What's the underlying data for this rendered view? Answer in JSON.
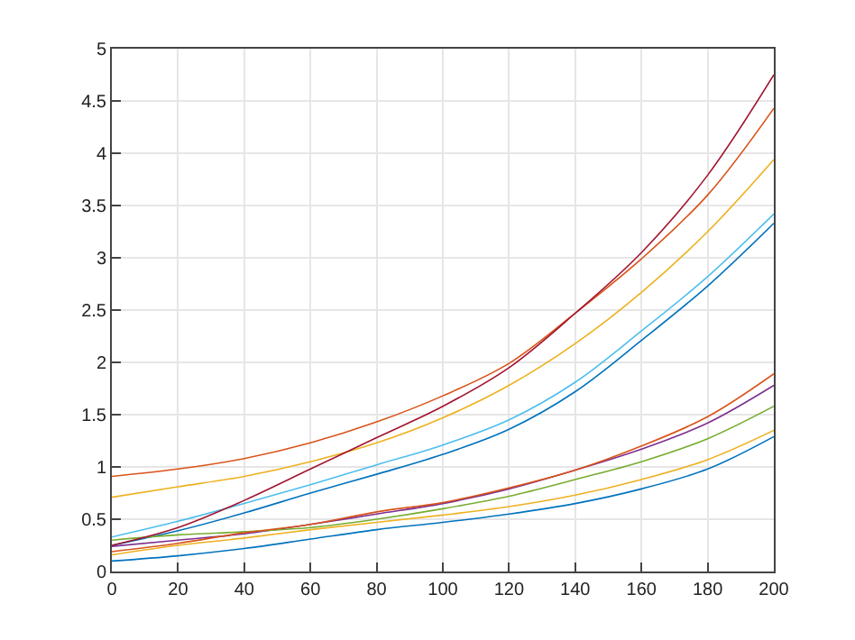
{
  "chart_data": {
    "type": "line",
    "x": [
      0,
      20,
      40,
      60,
      80,
      100,
      120,
      140,
      160,
      180,
      200
    ],
    "series": [
      {
        "color": "#0072bd",
        "values": [
          0.25,
          0.39,
          0.56,
          0.75,
          0.93,
          1.12,
          1.36,
          1.72,
          2.21,
          2.73,
          3.33
        ]
      },
      {
        "color": "#d95319",
        "values": [
          0.91,
          0.98,
          1.08,
          1.23,
          1.43,
          1.68,
          1.99,
          2.47,
          2.99,
          3.6,
          4.43
        ]
      },
      {
        "color": "#edb120",
        "values": [
          0.71,
          0.81,
          0.91,
          1.05,
          1.23,
          1.47,
          1.78,
          2.18,
          2.67,
          3.25,
          3.94
        ]
      },
      {
        "color": "#7e2f8e",
        "values": [
          0.24,
          0.3,
          0.36,
          0.45,
          0.55,
          0.65,
          0.79,
          0.97,
          1.17,
          1.42,
          1.78
        ]
      },
      {
        "color": "#77ac30",
        "values": [
          0.3,
          0.35,
          0.38,
          0.42,
          0.5,
          0.6,
          0.72,
          0.88,
          1.05,
          1.27,
          1.58
        ]
      },
      {
        "color": "#4dbeee",
        "values": [
          0.33,
          0.48,
          0.65,
          0.83,
          1.02,
          1.21,
          1.45,
          1.81,
          2.3,
          2.82,
          3.42
        ]
      },
      {
        "color": "#a2142f",
        "values": [
          0.25,
          0.42,
          0.68,
          0.98,
          1.28,
          1.58,
          1.95,
          2.47,
          3.05,
          3.79,
          4.75
        ]
      },
      {
        "color": "#0072bd",
        "values": [
          0.1,
          0.15,
          0.22,
          0.31,
          0.4,
          0.47,
          0.55,
          0.65,
          0.79,
          0.98,
          1.29
        ]
      },
      {
        "color": "#d95319",
        "values": [
          0.19,
          0.27,
          0.37,
          0.45,
          0.57,
          0.66,
          0.8,
          0.97,
          1.2,
          1.48,
          1.89
        ]
      },
      {
        "color": "#edb120",
        "values": [
          0.16,
          0.25,
          0.32,
          0.4,
          0.47,
          0.54,
          0.62,
          0.73,
          0.88,
          1.07,
          1.35
        ]
      }
    ],
    "xlim": [
      0,
      200
    ],
    "xticks": [
      0,
      20,
      40,
      60,
      80,
      100,
      120,
      140,
      160,
      180,
      200
    ],
    "ylim": [
      0,
      5
    ],
    "yticks": [
      0,
      0.5,
      1,
      1.5,
      2,
      2.5,
      3,
      3.5,
      4,
      4.5,
      5
    ],
    "grid": true,
    "line_style": "solid",
    "marker": "none"
  }
}
